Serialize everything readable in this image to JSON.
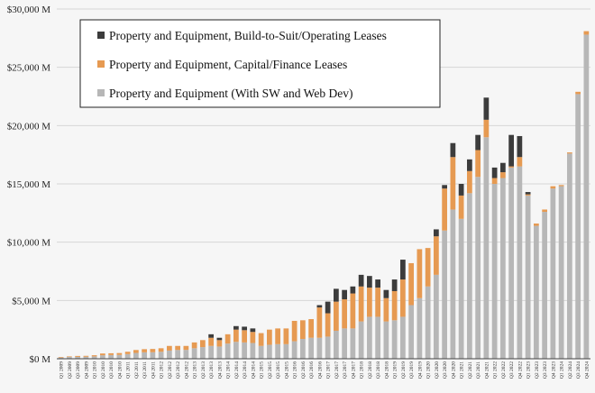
{
  "chart_data": {
    "type": "bar",
    "stacked": true,
    "title": "",
    "xlabel": "",
    "ylabel": "",
    "ylim": [
      0,
      30000
    ],
    "y_ticks": [
      0,
      5000,
      10000,
      15000,
      20000,
      25000,
      30000
    ],
    "y_tick_labels": [
      "$0 M",
      "$5,000 M",
      "$10,000 M",
      "$15,000 M",
      "$20,000 M",
      "$25,000 M",
      "$30,000 M"
    ],
    "legend_position": "top-left",
    "categories": [
      "Q1 2009",
      "Q2 2009",
      "Q3 2009",
      "Q4 2009",
      "Q1 2010",
      "Q2 2010",
      "Q3 2010",
      "Q4 2010",
      "Q1 2011",
      "Q2 2011",
      "Q3 2011",
      "Q4 2011",
      "Q1 2012",
      "Q2 2012",
      "Q3 2012",
      "Q4 2012",
      "Q1 2013",
      "Q2 2013",
      "Q3 2013",
      "Q4 2013",
      "Q1 2014",
      "Q2 2014",
      "Q3 2014",
      "Q4 2014",
      "Q1 2015",
      "Q2 2015",
      "Q3 2015",
      "Q4 2015",
      "Q1 2016",
      "Q2 2016",
      "Q3 2016",
      "Q4 2016",
      "Q1 2017",
      "Q2 2017",
      "Q3 2017",
      "Q4 2017",
      "Q1 2018",
      "Q2 2018",
      "Q3 2018",
      "Q4 2018",
      "Q1 2019",
      "Q2 2019",
      "Q3 2019",
      "Q4 2019",
      "Q1 2020",
      "Q2 2020",
      "Q3 2020",
      "Q4 2020",
      "Q1 2021",
      "Q2 2021",
      "Q3 2021",
      "Q4 2021",
      "Q1 2022",
      "Q2 2022",
      "Q3 2022",
      "Q4 2022",
      "Q1 2023",
      "Q2 2023",
      "Q3 2023",
      "Q4 2023",
      "Q1 2024",
      "Q2 2024",
      "Q3 2024",
      "Q4 2024"
    ],
    "series": [
      {
        "name": "Property and Equipment (With SW and Web Dev)",
        "color": "#b7b7b7",
        "values": [
          100,
          150,
          160,
          170,
          200,
          300,
          320,
          330,
          400,
          500,
          550,
          560,
          600,
          700,
          750,
          760,
          900,
          1000,
          1100,
          1050,
          1300,
          1450,
          1400,
          1350,
          1100,
          1200,
          1250,
          1250,
          1500,
          1700,
          1800,
          1800,
          1900,
          2400,
          2600,
          2600,
          3200,
          3600,
          3600,
          3200,
          3300,
          3600,
          4600,
          5200,
          6200,
          7200,
          11000,
          12800,
          12000,
          14200,
          15600,
          19000,
          15000,
          15500,
          16400,
          16500,
          14000,
          11400,
          12600,
          14600,
          14800,
          17600,
          22700,
          27800
        ]
      },
      {
        "name": "Property and Equipment, Capital/Finance Leases",
        "color": "#e69a52",
        "values": [
          50,
          50,
          80,
          80,
          100,
          150,
          150,
          160,
          200,
          250,
          270,
          280,
          300,
          400,
          350,
          340,
          500,
          600,
          700,
          550,
          800,
          1050,
          1050,
          950,
          1100,
          1300,
          1350,
          1350,
          1750,
          1600,
          1600,
          2600,
          2000,
          2500,
          2500,
          3000,
          3000,
          2500,
          2500,
          2000,
          2500,
          3200,
          3600,
          4200,
          3300,
          3300,
          3600,
          4500,
          2000,
          1900,
          2300,
          1500,
          500,
          500,
          100,
          800,
          100,
          200,
          200,
          200,
          100,
          100,
          200,
          300
        ]
      },
      {
        "name": "Property and Equipment, Build-to-Suit/Operating Leases",
        "color": "#3c3c3c",
        "values": [
          0,
          0,
          0,
          0,
          0,
          0,
          0,
          0,
          0,
          0,
          0,
          0,
          0,
          0,
          0,
          0,
          0,
          0,
          300,
          200,
          0,
          300,
          300,
          300,
          0,
          0,
          0,
          0,
          0,
          0,
          0,
          200,
          1000,
          1100,
          800,
          600,
          1000,
          1000,
          700,
          700,
          1000,
          1700,
          0,
          0,
          0,
          600,
          300,
          1200,
          1000,
          1000,
          1300,
          1900,
          900,
          800,
          2700,
          1800,
          200,
          0,
          0,
          0,
          0,
          0,
          0,
          0
        ]
      }
    ]
  },
  "legend": {
    "items": [
      {
        "label": "Property and Equipment, Build-to-Suit/Operating Leases",
        "color": "#3c3c3c"
      },
      {
        "label": "Property and Equipment, Capital/Finance Leases",
        "color": "#e69a52"
      },
      {
        "label": "Property and Equipment (With SW and Web Dev)",
        "color": "#b7b7b7"
      }
    ]
  }
}
